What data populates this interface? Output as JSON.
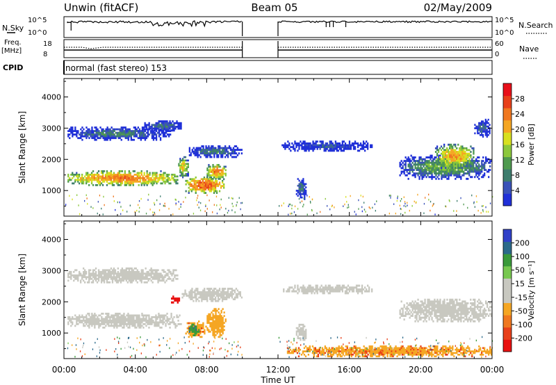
{
  "header": {
    "station": "Unwin (fitACF)",
    "beam": "Beam 05",
    "date": "02/May/2009"
  },
  "strips": {
    "nsky_label": "N.Sky",
    "nsearch_label": "N.Search",
    "freq_label": "Freq.",
    "freq_unit": "[MHz]",
    "nave_label": "Nave",
    "cpid_label": "CPID",
    "nsky_ticks": [
      "10^5",
      "10^0"
    ],
    "nsearch_ticks": [
      "10^5",
      "10^0"
    ],
    "freq_ticks": [
      "18",
      "8"
    ],
    "nave_ticks": [
      "60",
      "0"
    ],
    "cpid_text": "normal (fast stereo) 153"
  },
  "colors": {
    "power_scale": [
      "#2030d8",
      "#3a52b8",
      "#3e7d6e",
      "#4f9a4f",
      "#8cc83c",
      "#d8e020",
      "#f5a623",
      "#f07820",
      "#e8401a",
      "#e8101a"
    ],
    "velocity_scale": [
      "#3040c8",
      "#2c6a8a",
      "#3a9a3a",
      "#78c850",
      "#c8c8c0",
      "#c8c8c0",
      "#f5a623",
      "#f07820",
      "#e8401a",
      "#e81010"
    ]
  },
  "chart_data": [
    {
      "type": "heatmap",
      "name": "power",
      "ylabel": "Slant Range [km]",
      "xlabel": "Time UT",
      "y_ticks": [
        1000,
        2000,
        3000,
        4000
      ],
      "x_ticks": [
        "00:00",
        "04:00",
        "08:00",
        "12:00",
        "16:00",
        "20:00",
        "00:00"
      ],
      "xlim_hours": [
        0,
        24
      ],
      "ylim_km": [
        180,
        4590
      ],
      "colorbar": {
        "label": "Power [dB]",
        "ticks": [
          "28",
          "24",
          "20",
          "16",
          "12",
          "8",
          "4"
        ],
        "range": [
          0,
          30
        ]
      },
      "regions": [
        {
          "t0": 0.2,
          "t1": 6.4,
          "r0": 1150,
          "r1": 1650,
          "level": 22
        },
        {
          "t0": 6.4,
          "t1": 7.0,
          "r0": 1400,
          "r1": 2100,
          "level": 18
        },
        {
          "t0": 7.0,
          "t1": 10.0,
          "r0": 2050,
          "r1": 2450,
          "level": 8
        },
        {
          "t0": 6.8,
          "t1": 9.0,
          "r0": 900,
          "r1": 1450,
          "level": 24
        },
        {
          "t0": 8.0,
          "t1": 9.1,
          "r0": 1350,
          "r1": 1850,
          "level": 22
        },
        {
          "t0": 0.2,
          "t1": 6.0,
          "r0": 2600,
          "r1": 3050,
          "level": 8
        },
        {
          "t0": 4.5,
          "t1": 6.6,
          "r0": 2900,
          "r1": 3250,
          "level": 8
        },
        {
          "t0": 12.2,
          "t1": 17.3,
          "r0": 2250,
          "r1": 2600,
          "level": 5
        },
        {
          "t0": 13.0,
          "t1": 13.6,
          "r0": 700,
          "r1": 1400,
          "level": 8
        },
        {
          "t0": 18.8,
          "t1": 24.0,
          "r0": 1350,
          "r1": 2150,
          "level": 12
        },
        {
          "t0": 20.8,
          "t1": 23.0,
          "r0": 1700,
          "r1": 2500,
          "level": 20
        },
        {
          "t0": 23.0,
          "t1": 23.9,
          "r0": 2700,
          "r1": 3300,
          "level": 6
        }
      ]
    },
    {
      "type": "heatmap",
      "name": "velocity",
      "ylabel": "Slant Range [km]",
      "xlabel": "Time UT",
      "y_ticks": [
        1000,
        2000,
        3000,
        4000
      ],
      "x_ticks": [
        "00:00",
        "04:00",
        "08:00",
        "12:00",
        "16:00",
        "20:00",
        "00:00"
      ],
      "xlim_hours": [
        0,
        24
      ],
      "ylim_km": [
        180,
        4590
      ],
      "colorbar": {
        "label": "Velocity [m s⁻¹]",
        "ticks": [
          "200",
          "100",
          "50",
          "15",
          "-15",
          "-50",
          "-100",
          "-200"
        ],
        "range": [
          -250,
          250
        ]
      },
      "regions": [
        {
          "t0": 0.2,
          "t1": 6.6,
          "r0": 1150,
          "r1": 1650,
          "level": 0
        },
        {
          "t0": 6.6,
          "t1": 10.0,
          "r0": 2000,
          "r1": 2450,
          "level": 0
        },
        {
          "t0": 6.8,
          "t1": 8.0,
          "r0": 850,
          "r1": 1400,
          "level": -60
        },
        {
          "t0": 7.0,
          "t1": 7.6,
          "r0": 900,
          "r1": 1300,
          "level": 60
        },
        {
          "t0": 8.0,
          "t1": 9.1,
          "r0": 850,
          "r1": 1800,
          "level": -50
        },
        {
          "t0": 0.2,
          "t1": 6.4,
          "r0": 2600,
          "r1": 3100,
          "level": 0
        },
        {
          "t0": 6.0,
          "t1": 6.5,
          "r0": 1950,
          "r1": 2200,
          "level": -200
        },
        {
          "t0": 12.2,
          "t1": 17.3,
          "r0": 2250,
          "r1": 2550,
          "level": 0
        },
        {
          "t0": 13.0,
          "t1": 13.6,
          "r0": 700,
          "r1": 1350,
          "level": 0
        },
        {
          "t0": 18.8,
          "t1": 24.0,
          "r0": 1350,
          "r1": 2100,
          "level": 0
        },
        {
          "t0": 12.5,
          "t1": 24.0,
          "r0": 230,
          "r1": 600,
          "level": -60
        }
      ]
    }
  ]
}
